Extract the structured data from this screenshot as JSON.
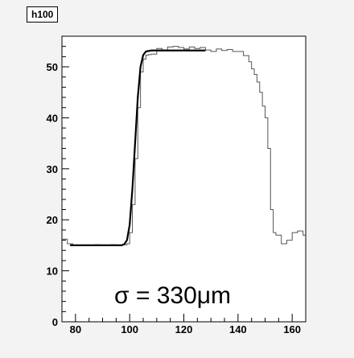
{
  "chart_data": {
    "type": "line",
    "title": "h100",
    "xlabel": "",
    "ylabel": "",
    "xlim": [
      75,
      165
    ],
    "ylim": [
      0,
      56
    ],
    "xticks": [
      80,
      100,
      120,
      140,
      160
    ],
    "yticks": [
      0,
      10,
      20,
      30,
      40,
      50
    ],
    "annotation": "σ = 330μm",
    "grid": false,
    "series": [
      {
        "kind": "histogram",
        "color": "#555555",
        "x": [
          75,
          77,
          79,
          81,
          83,
          85,
          87,
          89,
          91,
          93,
          95,
          97,
          99,
          100,
          101,
          102,
          103,
          104,
          105,
          106,
          107,
          108,
          110,
          112,
          114,
          116,
          118,
          120,
          122,
          124,
          126,
          128,
          130,
          132,
          134,
          136,
          138,
          140,
          142,
          144,
          145,
          146,
          147,
          148,
          149,
          150,
          151,
          152,
          153,
          154,
          156,
          158,
          160,
          162,
          164
        ],
        "y": [
          16.2,
          15.3,
          15.0,
          14.9,
          15.0,
          14.9,
          15.1,
          15.0,
          15.0,
          15.1,
          15.0,
          15.1,
          15.3,
          17.5,
          23.0,
          32.0,
          42.0,
          49.0,
          51.5,
          52.3,
          52.4,
          52.5,
          53.6,
          53.3,
          53.9,
          54.0,
          53.8,
          53.5,
          53.9,
          53.6,
          53.8,
          53.3,
          53.0,
          53.5,
          53.2,
          53.4,
          53.0,
          53.0,
          52.2,
          51.0,
          49.6,
          48.5,
          47.0,
          45.0,
          42.3,
          40.0,
          34.0,
          22.0,
          17.5,
          17.0,
          15.3,
          16.0,
          17.5,
          17.8,
          17.0
        ]
      },
      {
        "kind": "fit",
        "color": "#000000",
        "x": [
          78,
          82,
          86,
          90,
          94,
          96,
          97,
          98,
          99,
          100,
          101,
          102,
          103,
          104,
          105,
          106,
          108,
          112,
          116,
          120,
          124,
          128
        ],
        "y": [
          15.0,
          15.0,
          15.0,
          15.0,
          15.0,
          15.0,
          15.0,
          15.2,
          16.0,
          19.0,
          26.0,
          35.0,
          44.0,
          50.0,
          52.3,
          53.0,
          53.2,
          53.2,
          53.2,
          53.2,
          53.2,
          53.2
        ]
      }
    ]
  }
}
